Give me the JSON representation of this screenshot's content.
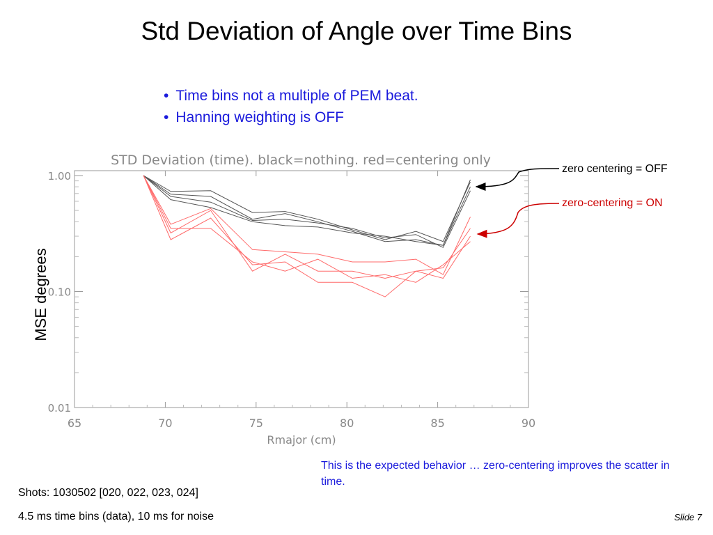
{
  "slide": {
    "title": "Std Deviation of Angle over Time Bins",
    "bullets": [
      "Time bins not a multiple of PEM beat.",
      "Hanning weighting is OFF"
    ],
    "annotation_off": "zero centering = OFF",
    "annotation_on": "zero-centering = ON",
    "note": "This is the expected behavior … zero-centering improves the scatter in time.",
    "shots": "Shots:  1030502 [020, 022, 023, 024]",
    "bins": "4.5 ms time bins (data), 10 ms for noise",
    "slide_number": "Slide 7",
    "ylabel": "MSE degrees",
    "colors": {
      "text_blue": "#1a1adc",
      "red": "#cc0000",
      "gray_line": "#555555",
      "red_line": "#ff6a6a"
    }
  },
  "chart_data": {
    "type": "line",
    "title": "STD Deviation (time).  black=nothing.  red=centering only",
    "xlabel": "Rmajor (cm)",
    "xlim": [
      65,
      90
    ],
    "ylim": [
      0.01,
      1.0
    ],
    "yscale": "log",
    "xticks": [
      65,
      70,
      75,
      80,
      85,
      90
    ],
    "xtick_labels": [
      "65",
      "70",
      "75",
      "80",
      "85",
      "90"
    ],
    "yticks": [
      1.0,
      0.1,
      0.01
    ],
    "ytick_labels": [
      "1.00",
      "0.10",
      "0.01"
    ],
    "x": [
      68.8,
      70.3,
      72.5,
      74.8,
      76.6,
      78.4,
      80.3,
      82.1,
      83.8,
      85.3,
      86.8
    ],
    "series": [
      {
        "group": "black",
        "values": [
          1.0,
          0.73,
          0.74,
          0.48,
          0.49,
          0.42,
          0.34,
          0.28,
          0.33,
          0.27,
          0.88
        ]
      },
      {
        "group": "black",
        "values": [
          1.0,
          0.69,
          0.66,
          0.42,
          0.47,
          0.4,
          0.33,
          0.27,
          0.28,
          0.25,
          0.92
        ]
      },
      {
        "group": "black",
        "values": [
          1.0,
          0.66,
          0.59,
          0.41,
          0.42,
          0.39,
          0.35,
          0.29,
          0.31,
          0.24,
          0.74
        ]
      },
      {
        "group": "black",
        "values": [
          1.0,
          0.62,
          0.53,
          0.4,
          0.37,
          0.36,
          0.32,
          0.3,
          0.27,
          0.25,
          0.8
        ]
      },
      {
        "group": "red",
        "values": [
          1.0,
          0.38,
          0.52,
          0.23,
          0.22,
          0.21,
          0.18,
          0.18,
          0.19,
          0.14,
          0.44
        ]
      },
      {
        "group": "red",
        "values": [
          1.0,
          0.32,
          0.5,
          0.15,
          0.21,
          0.15,
          0.15,
          0.13,
          0.15,
          0.16,
          0.35
        ]
      },
      {
        "group": "red",
        "values": [
          1.0,
          0.28,
          0.43,
          0.17,
          0.18,
          0.12,
          0.12,
          0.09,
          0.15,
          0.13,
          0.3
        ]
      },
      {
        "group": "red",
        "values": [
          1.0,
          0.35,
          0.35,
          0.18,
          0.15,
          0.19,
          0.13,
          0.14,
          0.12,
          0.17,
          0.27
        ]
      }
    ]
  }
}
